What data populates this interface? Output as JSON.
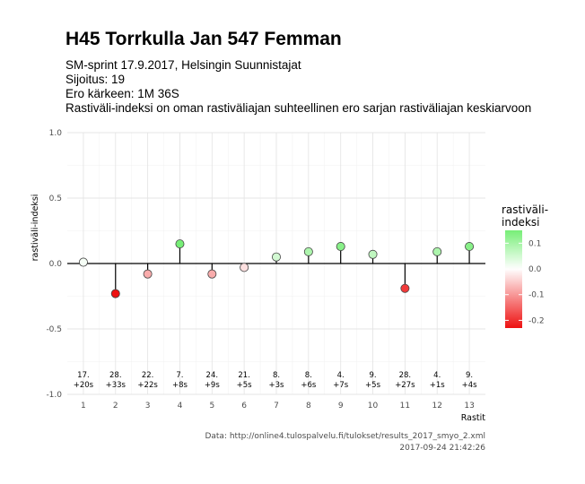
{
  "header": {
    "title": "H45 Torrkulla Jan 547 Femman",
    "subtitle_lines": [
      "SM-sprint 17.9.2017, Helsingin Suunnistajat",
      "Sijoitus: 19",
      "Ero kärkeen: 1M 36S",
      "Rastiväli-indeksi on oman rastiväliajan suhteellinen ero sarjan rastiväliajan keskiarvoon"
    ]
  },
  "caption": {
    "source": "Data: http://online4.tulospalvelu.fi/tulokset/results_2017_smyo_2.xml",
    "timestamp": "2017-09-24 21:42:26"
  },
  "colors": {
    "negative": "#ee1111",
    "zero": "#ffffff",
    "positive": "#77ee77",
    "gridline": "#e5e5e5",
    "zero_line": "#000000"
  },
  "chart_data": {
    "type": "scatter",
    "style": "lollipop",
    "xlabel": "Rastit",
    "ylabel": "rastiväli-indeksi",
    "x": [
      1,
      2,
      3,
      4,
      5,
      6,
      7,
      8,
      9,
      10,
      11,
      12,
      13
    ],
    "values": [
      0.01,
      -0.23,
      -0.08,
      0.15,
      -0.08,
      -0.03,
      0.05,
      0.09,
      0.13,
      0.07,
      -0.19,
      0.09,
      0.13
    ],
    "labels_rank": [
      "17.",
      "28.",
      "22.",
      "7.",
      "24.",
      "21.",
      "8.",
      "8.",
      "4.",
      "9.",
      "28.",
      "4.",
      "9."
    ],
    "labels_diff": [
      "+20s",
      "+33s",
      "+22s",
      "+8s",
      "+9s",
      "+5s",
      "+3s",
      "+6s",
      "+7s",
      "+5s",
      "+27s",
      "+1s",
      "+4s"
    ],
    "ylim": [
      -1.0,
      1.0
    ],
    "xlim": [
      0.5,
      13.5
    ],
    "yticks": [
      -1.0,
      -0.5,
      0.0,
      0.5,
      1.0
    ],
    "ytick_labels": [
      "-1.0",
      "-0.5",
      "0.0",
      "0.5",
      "1.0"
    ],
    "grid": true,
    "legend": {
      "title_lines": [
        "rastiväli-",
        "indeksi"
      ],
      "ticks": [
        0.1,
        0.0,
        -0.1,
        -0.2
      ],
      "tick_labels": [
        "0.1",
        "0.0",
        "-0.1",
        "-0.2"
      ],
      "range": [
        -0.23,
        0.15
      ],
      "position": "right"
    }
  }
}
